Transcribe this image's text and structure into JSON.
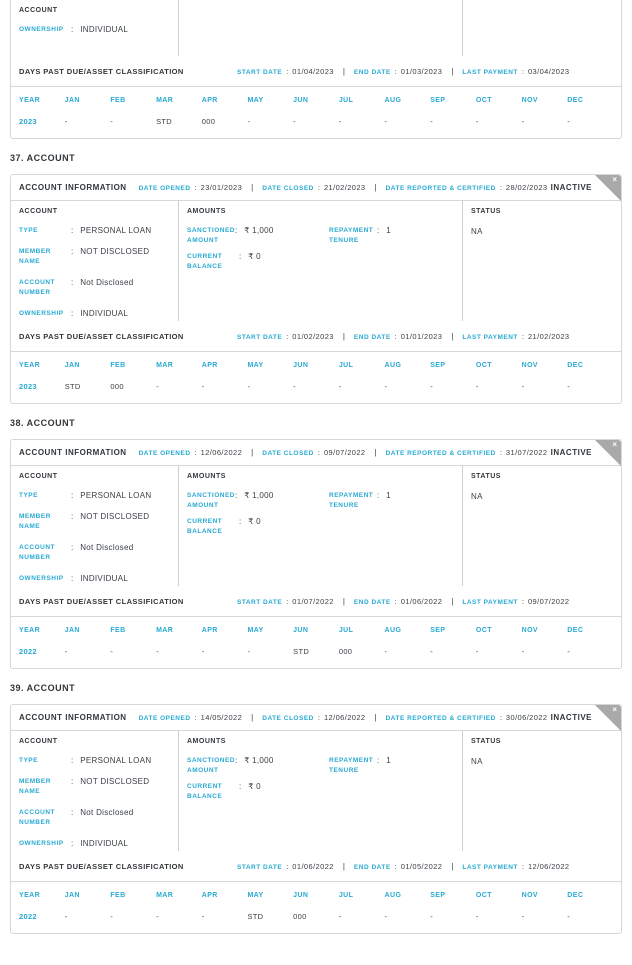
{
  "colors": {
    "accent": "#29AAD2",
    "text_dark": "#32373B",
    "value_text": "#3A4046",
    "border": "#D7D7D7",
    "corner_flap": "#A9A9A9"
  },
  "icons": {
    "close": "×"
  },
  "months": [
    "JAN",
    "FEB",
    "MAR",
    "APR",
    "MAY",
    "JUN",
    "JUL",
    "AUG",
    "SEP",
    "OCT",
    "NOV",
    "DEC"
  ],
  "labels": {
    "account_information": "ACCOUNT INFORMATION",
    "date_opened": "DATE OPENED",
    "date_closed": "DATE CLOSED",
    "date_reported": "DATE REPORTED & CERTIFIED",
    "account": "ACCOUNT",
    "amounts": "AMOUNTS",
    "status": "STATUS",
    "type": "TYPE",
    "member_name": "MEMBER NAME",
    "account_number": "ACCOUNT NUMBER",
    "ownership": "OWNERSHIP",
    "sanctioned_amount": "SANCTIONED AMOUNT",
    "repayment_tenure": "REPAYMENT TENURE",
    "current_balance": "CURRENT BALANCE",
    "dpd_title": "DAYS PAST DUE/ASSET CLASSIFICATION",
    "start_date": "START DATE",
    "end_date": "END DATE",
    "last_payment": "LAST PAYMENT",
    "year": "YEAR"
  },
  "partial_card": {
    "account_col_header": "ACCOUNT",
    "ownership_value": "INDIVIDUAL",
    "dpd": {
      "start_date": "01/04/2023",
      "end_date": "01/03/2023",
      "last_payment": "03/04/2023"
    },
    "grid": {
      "year": "2023",
      "values": [
        "-",
        "-",
        "STD",
        "000",
        "-",
        "-",
        "-",
        "-",
        "-",
        "-",
        "-",
        "-"
      ]
    }
  },
  "cards": [
    {
      "heading": "37. ACCOUNT",
      "date_opened": "23/01/2023",
      "date_closed": "21/02/2023",
      "date_reported": "28/02/2023",
      "status_badge": "INACTIVE",
      "account": {
        "type": "PERSONAL LOAN",
        "member_name": "NOT DISCLOSED",
        "account_number": "Not Disclosed",
        "ownership": "INDIVIDUAL"
      },
      "amounts": {
        "sanctioned_amount": "₹ 1,000",
        "repayment_tenure": "1",
        "current_balance": "₹ 0"
      },
      "status": "NA",
      "dpd": {
        "start_date": "01/02/2023",
        "end_date": "01/01/2023",
        "last_payment": "21/02/2023"
      },
      "grid": {
        "year": "2023",
        "values": [
          "STD",
          "000",
          "-",
          "-",
          "-",
          "-",
          "-",
          "-",
          "-",
          "-",
          "-",
          "-"
        ]
      }
    },
    {
      "heading": "38. ACCOUNT",
      "date_opened": "12/06/2022",
      "date_closed": "09/07/2022",
      "date_reported": "31/07/2022",
      "status_badge": "INACTIVE",
      "account": {
        "type": "PERSONAL LOAN",
        "member_name": "NOT DISCLOSED",
        "account_number": "Not Disclosed",
        "ownership": "INDIVIDUAL"
      },
      "amounts": {
        "sanctioned_amount": "₹ 1,000",
        "repayment_tenure": "1",
        "current_balance": "₹ 0"
      },
      "status": "NA",
      "dpd": {
        "start_date": "01/07/2022",
        "end_date": "01/06/2022",
        "last_payment": "09/07/2022"
      },
      "grid": {
        "year": "2022",
        "values": [
          "-",
          "-",
          "-",
          "-",
          "-",
          "STD",
          "000",
          "-",
          "-",
          "-",
          "-",
          "-"
        ]
      }
    },
    {
      "heading": "39. ACCOUNT",
      "date_opened": "14/05/2022",
      "date_closed": "12/06/2022",
      "date_reported": "30/06/2022",
      "status_badge": "INACTIVE",
      "account": {
        "type": "PERSONAL LOAN",
        "member_name": "NOT DISCLOSED",
        "account_number": "Not Disclosed",
        "ownership": "INDIVIDUAL"
      },
      "amounts": {
        "sanctioned_amount": "₹ 1,000",
        "repayment_tenure": "1",
        "current_balance": "₹ 0"
      },
      "status": "NA",
      "dpd": {
        "start_date": "01/06/2022",
        "end_date": "01/05/2022",
        "last_payment": "12/06/2022"
      },
      "grid": {
        "year": "2022",
        "values": [
          "-",
          "-",
          "-",
          "-",
          "STD",
          "000",
          "-",
          "-",
          "-",
          "-",
          "-",
          "-"
        ]
      }
    }
  ]
}
